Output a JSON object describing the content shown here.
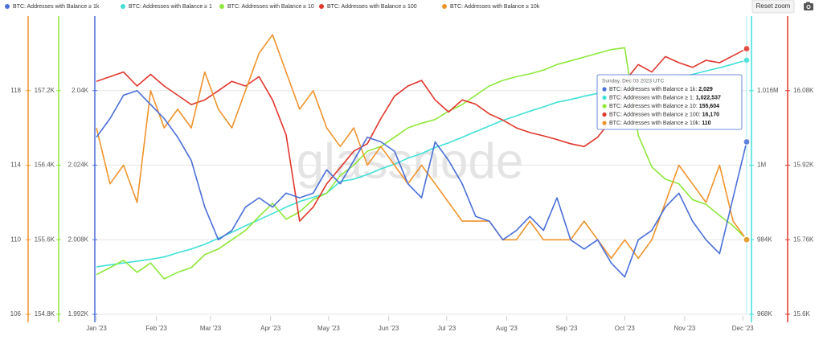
{
  "chart_data": {
    "type": "line",
    "watermark": "glassnode",
    "reset_button": "Reset zoom",
    "grid": true,
    "x": [
      "2023-01-01",
      "2023-01-08",
      "2023-01-15",
      "2023-01-22",
      "2023-01-29",
      "2023-02-05",
      "2023-02-12",
      "2023-02-19",
      "2023-02-26",
      "2023-03-05",
      "2023-03-12",
      "2023-03-19",
      "2023-03-26",
      "2023-04-02",
      "2023-04-09",
      "2023-04-16",
      "2023-04-23",
      "2023-04-30",
      "2023-05-07",
      "2023-05-14",
      "2023-05-21",
      "2023-05-28",
      "2023-06-04",
      "2023-06-11",
      "2023-06-18",
      "2023-06-25",
      "2023-07-02",
      "2023-07-09",
      "2023-07-16",
      "2023-07-23",
      "2023-07-30",
      "2023-08-06",
      "2023-08-13",
      "2023-08-20",
      "2023-08-27",
      "2023-09-03",
      "2023-09-10",
      "2023-09-17",
      "2023-09-24",
      "2023-10-01",
      "2023-10-08",
      "2023-10-15",
      "2023-10-22",
      "2023-10-29",
      "2023-11-05",
      "2023-11-12",
      "2023-11-19",
      "2023-11-26",
      "2023-12-03"
    ],
    "xlim": [
      "2023-01-01",
      "2023-12-03"
    ],
    "xticks": [
      {
        "value": "2023-01-01",
        "label": "Jan '23"
      },
      {
        "value": "2023-02-01",
        "label": "Feb '23"
      },
      {
        "value": "2023-03-01",
        "label": "Mar '23"
      },
      {
        "value": "2023-04-01",
        "label": "Apr '23"
      },
      {
        "value": "2023-05-01",
        "label": "May '23"
      },
      {
        "value": "2023-06-01",
        "label": "Jun '23"
      },
      {
        "value": "2023-07-01",
        "label": "Jul '23"
      },
      {
        "value": "2023-08-01",
        "label": "Aug '23"
      },
      {
        "value": "2023-09-01",
        "label": "Sep '23"
      },
      {
        "value": "2023-10-01",
        "label": "Oct '23"
      },
      {
        "value": "2023-11-01",
        "label": "Nov '23"
      },
      {
        "value": "2023-12-01",
        "label": "Dec '23"
      }
    ],
    "series": [
      {
        "name": "BTC: Addresses with Balance ≥ 1k",
        "color": "#4a6fd8",
        "axis_side": "left",
        "ylim": [
          1992,
          2056
        ],
        "yticks": [
          {
            "value": 1992,
            "label": "1.992K"
          },
          {
            "value": 2008,
            "label": "2.008K"
          },
          {
            "value": 2024,
            "label": "2.024K"
          },
          {
            "value": 2040,
            "label": "2.04K"
          }
        ],
        "values": [
          2030,
          2034,
          2039,
          2040,
          2037,
          2034,
          2030,
          2025,
          2015,
          2008,
          2010,
          2015,
          2017,
          2015,
          2018,
          2017,
          2018,
          2023,
          2020,
          2025,
          2030,
          2029,
          2027,
          2020,
          2017,
          2029,
          2025,
          2020,
          2013,
          2012,
          2008,
          2010,
          2013,
          2010,
          2017,
          2008,
          2006,
          2008,
          2003,
          2000,
          2008,
          2010,
          2015,
          2018,
          2012,
          2008,
          2005,
          2017,
          2029
        ]
      },
      {
        "name": "BTC: Addresses with Balance ≥ 1",
        "color": "#40e0d8",
        "axis_side": "right",
        "ylim": [
          968000,
          1032000
        ],
        "yticks": [
          {
            "value": 968000,
            "label": "968K"
          },
          {
            "value": 984000,
            "label": "984K"
          },
          {
            "value": 1000000,
            "label": "1M"
          },
          {
            "value": 1016000,
            "label": "1.016M"
          }
        ],
        "values": [
          978200,
          978600,
          979000,
          979400,
          979800,
          980300,
          981200,
          982000,
          983000,
          984300,
          985600,
          987000,
          988300,
          989600,
          991000,
          992200,
          993100,
          994000,
          996500,
          997000,
          998000,
          999200,
          1000200,
          1001500,
          1002500,
          1003800,
          1004800,
          1006000,
          1007200,
          1008400,
          1009600,
          1010600,
          1011600,
          1012500,
          1013500,
          1014100,
          1014800,
          1015400,
          1016000,
          1016600,
          1017100,
          1017700,
          1018300,
          1018900,
          1019500,
          1020200,
          1020900,
          1021700,
          1022537
        ]
      },
      {
        "name": "BTC: Addresses with Balance ≥ 10",
        "color": "#8ee83a",
        "axis_side": "left",
        "ylim": [
          154800,
          158000
        ],
        "yticks": [
          {
            "value": 154800,
            "label": "154.8K"
          },
          {
            "value": 155600,
            "label": "155.6K"
          },
          {
            "value": 156400,
            "label": "156.4K"
          },
          {
            "value": 157200,
            "label": "157.2K"
          }
        ],
        "values": [
          155226,
          155300,
          155380,
          155250,
          155350,
          155180,
          155250,
          155300,
          155440,
          155500,
          155600,
          155700,
          155850,
          155990,
          155820,
          155900,
          156030,
          156100,
          156290,
          156400,
          156550,
          156600,
          156700,
          156800,
          156850,
          156890,
          156980,
          157050,
          157150,
          157250,
          157310,
          157350,
          157380,
          157420,
          157480,
          157520,
          157560,
          157600,
          157640,
          157660,
          156720,
          156380,
          156250,
          156200,
          156030,
          155980,
          155860,
          155750,
          155604
        ]
      },
      {
        "name": "BTC: Addresses with Balance ≥ 100",
        "color": "#e0362c",
        "axis_side": "right",
        "ylim": [
          15600,
          16240
        ],
        "yticks": [
          {
            "value": 15600,
            "label": "15.6K"
          },
          {
            "value": 15760,
            "label": "15.76K"
          },
          {
            "value": 15920,
            "label": "15.92K"
          },
          {
            "value": 16080,
            "label": "16.08K"
          }
        ],
        "values": [
          16100,
          16110,
          16120,
          16090,
          16115,
          16090,
          16070,
          16050,
          16060,
          16080,
          16100,
          16090,
          16110,
          16060,
          15985,
          15800,
          15830,
          15880,
          15915,
          15950,
          15966,
          16020,
          16068,
          16090,
          16102,
          16060,
          16034,
          16060,
          16051,
          16030,
          16017,
          16000,
          15990,
          15983,
          15975,
          15966,
          15960,
          15980,
          16017,
          16100,
          16136,
          16120,
          16153,
          16140,
          16130,
          16145,
          16140,
          16155,
          16170
        ]
      },
      {
        "name": "BTC: Addresses with Balance ≥ 10k",
        "color": "#f0932b",
        "axis_side": "left",
        "ylim": [
          106,
          122
        ],
        "yticks": [
          106,
          110,
          114,
          118
        ],
        "values": [
          116,
          113,
          114,
          112,
          118,
          116,
          117,
          116,
          119,
          117,
          116,
          118,
          120,
          121,
          119,
          117,
          118,
          116,
          115,
          116,
          114,
          115,
          114,
          113,
          114,
          113,
          112,
          111,
          111,
          111,
          110,
          110,
          111,
          110,
          110,
          110,
          111,
          110,
          109,
          110,
          109,
          110,
          112,
          114,
          113,
          112,
          114,
          111,
          110
        ]
      }
    ],
    "tooltip": {
      "date": "Sunday, Dec 03 2023 UTC",
      "rows": [
        {
          "label": "BTC: Addresses with Balance ≥ 1k:",
          "value_label": "2,029"
        },
        {
          "label": "BTC: Addresses with Balance ≥ 1:",
          "value_label": "1,022,537"
        },
        {
          "label": "BTC: Addresses with Balance ≥ 10:",
          "value_label": "155,604"
        },
        {
          "label": "BTC: Addresses with Balance ≥ 100:",
          "value_label": "16,170"
        },
        {
          "label": "BTC: Addresses with Balance ≥ 10k:",
          "value_label": "110"
        }
      ]
    }
  }
}
